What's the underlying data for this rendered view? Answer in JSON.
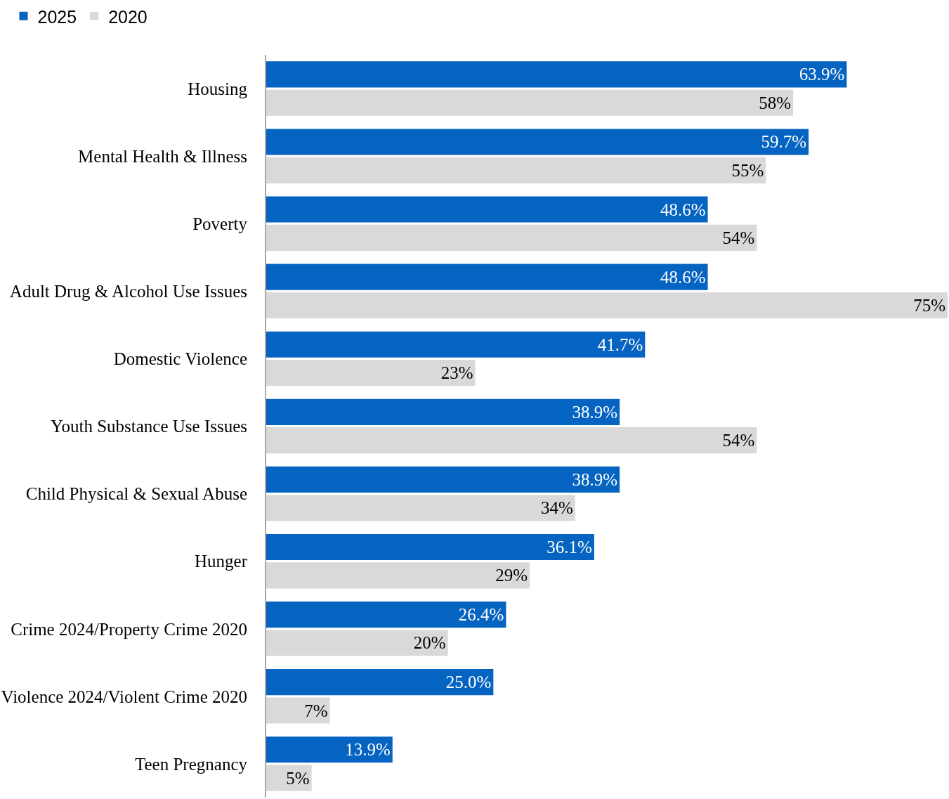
{
  "chart_data": {
    "type": "bar",
    "orientation": "horizontal",
    "categories": [
      "Housing",
      "Mental Health & Illness",
      "Poverty",
      "Adult Drug & Alcohol Use Issues",
      "Domestic Violence",
      "Youth Substance Use Issues",
      "Child Physical & Sexual Abuse",
      "Hunger",
      "Crime 2024/Property Crime 2020",
      "Violence 2024/Violent Crime 2020",
      "Teen Pregnancy"
    ],
    "series": [
      {
        "name": "2025",
        "color": "#0563c1",
        "values": [
          63.9,
          59.7,
          48.6,
          48.6,
          41.7,
          38.9,
          38.9,
          36.1,
          26.4,
          25.0,
          13.9
        ],
        "value_labels": [
          "63.9%",
          "59.7%",
          "48.6%",
          "48.6%",
          "41.7%",
          "38.9%",
          "38.9%",
          "36.1%",
          "26.4%",
          "25.0%",
          "13.9%"
        ]
      },
      {
        "name": "2020",
        "color": "#d9d9d9",
        "values": [
          58,
          55,
          54,
          75,
          23,
          54,
          34,
          29,
          20,
          7,
          5
        ],
        "value_labels": [
          "58%",
          "55%",
          "54%",
          "75%",
          "23%",
          "54%",
          "34%",
          "29%",
          "20%",
          "7%",
          "5%"
        ]
      }
    ],
    "legend": "top left",
    "tick_labels": "y"
  }
}
